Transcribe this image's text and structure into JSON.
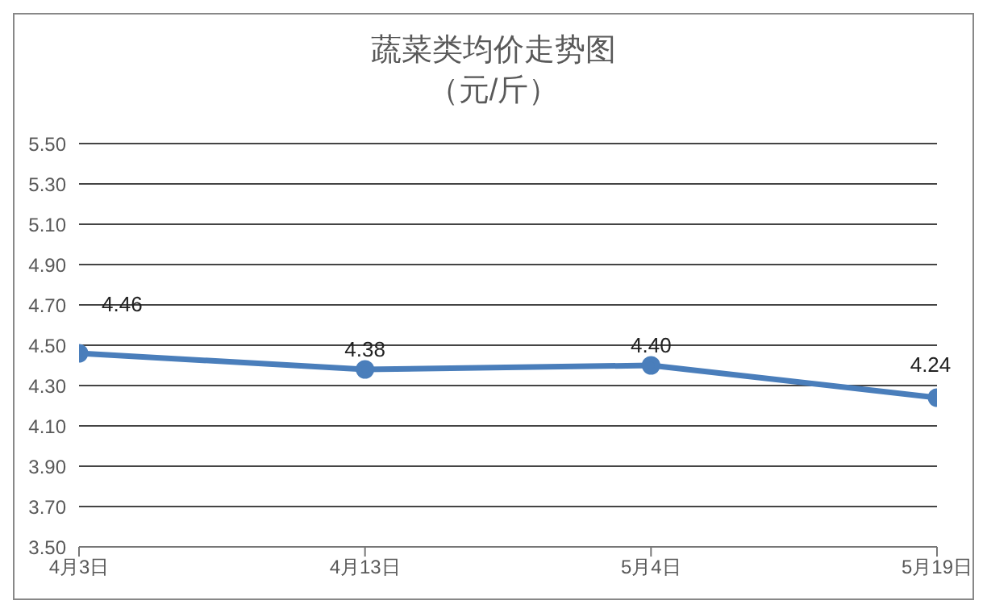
{
  "chart_data": {
    "type": "line",
    "title": "蔬菜类均价走势图",
    "subtitle": "（元/斤）",
    "categories": [
      "4月3日",
      "4月13日",
      "5月4日",
      "5月19日"
    ],
    "series": [
      {
        "color": "#4a7ebb",
        "values": [
          4.46,
          4.38,
          4.4,
          4.24
        ]
      }
    ],
    "value_labels": [
      "4.46",
      "4.38",
      "4.40",
      "4.24"
    ],
    "ylim": [
      3.5,
      5.5
    ],
    "yticks": [
      {
        "value": 3.5,
        "label": "3.50"
      },
      {
        "value": 3.7,
        "label": "3.70"
      },
      {
        "value": 3.9,
        "label": "3.90"
      },
      {
        "value": 4.1,
        "label": "4.10"
      },
      {
        "value": 4.3,
        "label": "4.30"
      },
      {
        "value": 4.5,
        "label": "4.50"
      },
      {
        "value": 4.7,
        "label": "4.70"
      },
      {
        "value": 4.9,
        "label": "4.90"
      },
      {
        "value": 5.1,
        "label": "5.10"
      },
      {
        "value": 5.3,
        "label": "5.30"
      },
      {
        "value": 5.5,
        "label": "5.50"
      }
    ],
    "grid": "y",
    "legend": false,
    "marker": "circle",
    "line_style": "solid"
  }
}
